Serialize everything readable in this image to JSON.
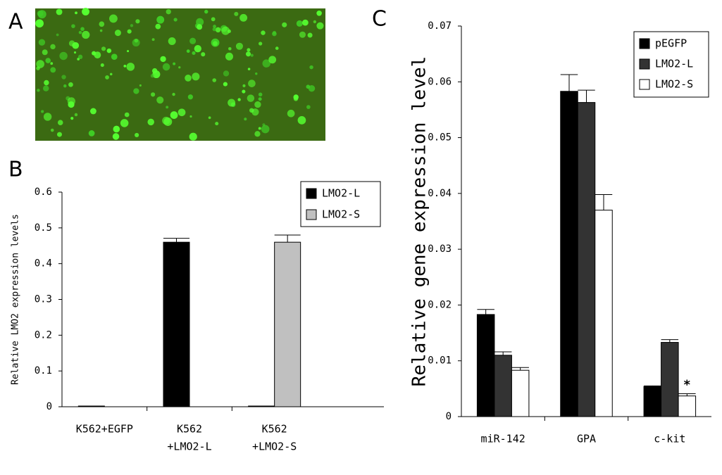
{
  "chart_data": [
    {
      "type": "image",
      "label": "A"
    },
    {
      "type": "bar",
      "label": "B",
      "ylabel": "Relative LMO2 expression levels",
      "categories": [
        [
          "K562+EGFP"
        ],
        [
          "K562",
          "+LMO2-L"
        ],
        [
          "K562",
          "+LMO2-S"
        ]
      ],
      "series": [
        {
          "name": "LMO2-L",
          "color": "#000000",
          "values": [
            0.002,
            0.46,
            0.002
          ],
          "errors": [
            0,
            0.011,
            0
          ]
        },
        {
          "name": "LMO2-S",
          "color": "#c0c0c0",
          "values": [
            0,
            0,
            0.46
          ],
          "errors": [
            0,
            0,
            0.02
          ]
        }
      ],
      "ylim": [
        0,
        0.6
      ],
      "yticks": [
        0,
        0.1,
        0.2,
        0.3,
        0.4,
        0.5,
        0.6
      ],
      "legend": "upper-right"
    },
    {
      "type": "bar",
      "label": "C",
      "ylabel": "Relative gene expression level",
      "categories": [
        [
          "miR-142"
        ],
        [
          "GPA"
        ],
        [
          "c-kit"
        ]
      ],
      "series": [
        {
          "name": "pEGFP",
          "color": "#000000",
          "values": [
            0.0183,
            0.0583,
            0.0054
          ],
          "errors": [
            0.0009,
            0.003,
            0.0001
          ]
        },
        {
          "name": "LMO2-L",
          "color": "#333333",
          "values": [
            0.011,
            0.0563,
            0.0133
          ],
          "errors": [
            0.0006,
            0.0022,
            0.0005
          ]
        },
        {
          "name": "LMO2-S",
          "color": "#ffffff",
          "values": [
            0.0083,
            0.037,
            0.0037
          ],
          "errors": [
            0.0005,
            0.0028,
            0.0004
          ]
        }
      ],
      "annotation": "*",
      "ylim": [
        0,
        0.07
      ],
      "yticks": [
        0,
        0.01,
        0.02,
        0.03,
        0.04,
        0.05,
        0.06,
        0.07
      ],
      "legend": "upper-right"
    }
  ]
}
